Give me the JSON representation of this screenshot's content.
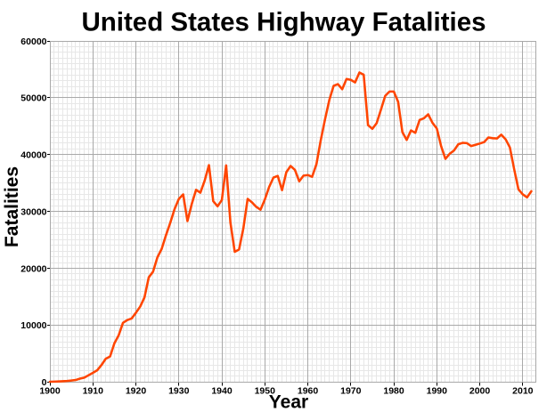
{
  "chart_data": {
    "type": "line",
    "title": "United States Highway Fatalities",
    "xlabel": "Year",
    "ylabel": "Fatalities",
    "x_range": [
      1900,
      2013
    ],
    "y_range": [
      0,
      60000
    ],
    "x_major_ticks": [
      1900,
      1910,
      1920,
      1930,
      1940,
      1950,
      1960,
      1970,
      1980,
      1990,
      2000,
      2010
    ],
    "x_minor_step": 1,
    "y_major_ticks": [
      0,
      10000,
      20000,
      30000,
      40000,
      50000,
      60000
    ],
    "y_minor_step": 1000,
    "grid": true,
    "legend_position": "none",
    "line_color": "#ff4500",
    "grid_minor_color": "#e7e7e7",
    "grid_major_color": "#a9a9a9",
    "tick_color": "#000000",
    "text_color": "#000000",
    "background_color": "#ffffff",
    "series": [
      {
        "name": "US highway fatalities",
        "x": [
          1900,
          1901,
          1902,
          1903,
          1904,
          1905,
          1906,
          1907,
          1908,
          1909,
          1910,
          1911,
          1912,
          1913,
          1914,
          1915,
          1916,
          1917,
          1918,
          1919,
          1920,
          1921,
          1922,
          1923,
          1924,
          1925,
          1926,
          1927,
          1928,
          1929,
          1930,
          1931,
          1932,
          1933,
          1934,
          1935,
          1936,
          1937,
          1938,
          1939,
          1940,
          1941,
          1942,
          1943,
          1944,
          1945,
          1946,
          1947,
          1948,
          1949,
          1950,
          1951,
          1952,
          1953,
          1954,
          1955,
          1956,
          1957,
          1958,
          1959,
          1960,
          1961,
          1962,
          1963,
          1964,
          1965,
          1966,
          1967,
          1968,
          1969,
          1970,
          1971,
          1972,
          1973,
          1974,
          1975,
          1976,
          1977,
          1978,
          1979,
          1980,
          1981,
          1982,
          1983,
          1984,
          1985,
          1986,
          1987,
          1988,
          1989,
          1990,
          1991,
          1992,
          1993,
          1994,
          1995,
          1996,
          1997,
          1998,
          1999,
          2000,
          2001,
          2002,
          2003,
          2004,
          2005,
          2006,
          2007,
          2008,
          2009,
          2010,
          2011,
          2012
        ],
        "values": [
          36,
          54,
          79,
          117,
          172,
          252,
          338,
          581,
          751,
          1174,
          1599,
          2043,
          2968,
          4079,
          4468,
          6779,
          8200,
          10390,
          10890,
          11154,
          12155,
          13253,
          14859,
          18400,
          19400,
          21900,
          23400,
          25800,
          28000,
          30400,
          32200,
          33000,
          28300,
          31300,
          33800,
          33300,
          35400,
          38150,
          31800,
          30900,
          32000,
          38100,
          28000,
          22900,
          23300,
          27000,
          32200,
          31600,
          30800,
          30300,
          32100,
          34300,
          35950,
          36250,
          33750,
          36900,
          38000,
          37300,
          35300,
          36300,
          36400,
          36100,
          38300,
          42500,
          46200,
          49600,
          52100,
          52400,
          51500,
          53300,
          53150,
          52700,
          54450,
          54050,
          45196,
          44525,
          45523,
          47878,
          50331,
          51093,
          51091,
          49301,
          43945,
          42589,
          44257,
          43825,
          46087,
          46390,
          47087,
          45582,
          44599,
          41508,
          39250,
          40150,
          40716,
          41817,
          42065,
          42013,
          41501,
          41717,
          41945,
          42196,
          43005,
          42884,
          42836,
          43510,
          42708,
          41259,
          37423,
          33883,
          32999,
          32479,
          33561
        ]
      }
    ]
  }
}
